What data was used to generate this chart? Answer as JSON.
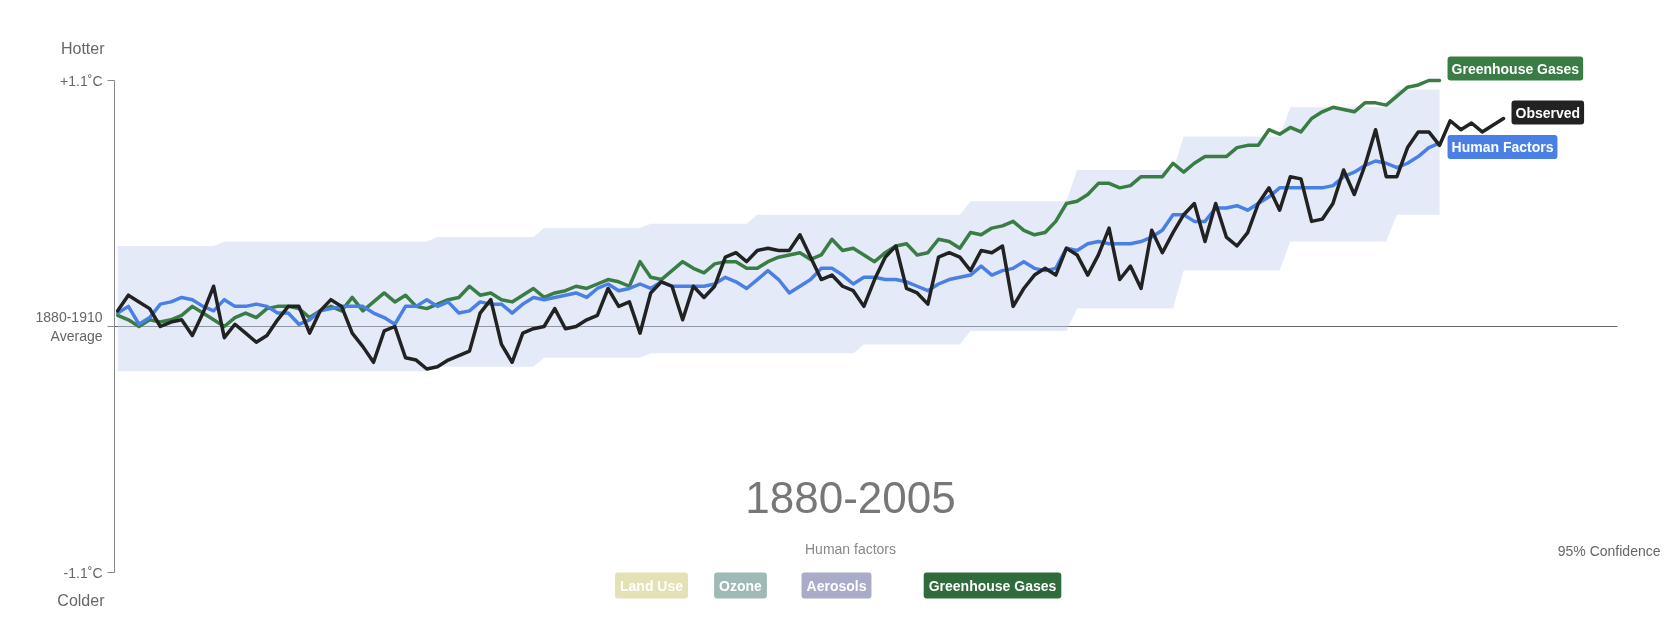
{
  "chart_data": {
    "type": "line",
    "categories": [
      null,
      null,
      null,
      null,
      null,
      null,
      null,
      null,
      null,
      null,
      null,
      null,
      null,
      null,
      null,
      null,
      null,
      null,
      null,
      null,
      null,
      null,
      null,
      null,
      null,
      null,
      null,
      null,
      null,
      null,
      null,
      null,
      null,
      null,
      null,
      null,
      null,
      null,
      null,
      null,
      null,
      null,
      null,
      null,
      null,
      null,
      null,
      null,
      null,
      null,
      null,
      null,
      null,
      null,
      null,
      null,
      null,
      null,
      null,
      null,
      null,
      null,
      null,
      null,
      null,
      null,
      null,
      null,
      null,
      null,
      null,
      null,
      null,
      null,
      null,
      null,
      null,
      null,
      null,
      null,
      null,
      null,
      null,
      null,
      null,
      null,
      null,
      null,
      null,
      null,
      null,
      null,
      null,
      null,
      null,
      null,
      null,
      null,
      null,
      null,
      null,
      null,
      null,
      null,
      null,
      null,
      null,
      null,
      null,
      null,
      null,
      null,
      null,
      null,
      null,
      null,
      null,
      null,
      null,
      null,
      null,
      null,
      null,
      null,
      null,
      null,
      null,
      null,
      null,
      null,
      null
    ],
    "ylim": [
      -1.1,
      1.1
    ],
    "yticks": [
      {
        "value": 1.1,
        "label": "+1.1˚C"
      },
      {
        "value": 0,
        "label": "1880-1910\nAverage"
      },
      {
        "value": -1.1,
        "label": "-1.1˚C"
      }
    ],
    "tick_labels": "y",
    "legend_title": "Human factors",
    "ref_lines": [
      {
        "axis": "y",
        "value": 0,
        "color": "#666666"
      }
    ],
    "annotations": [
      "Hotter",
      "Colder",
      "1880-2005",
      "Land Use",
      "Ozone",
      "Aerosols",
      "Greenhouse Gases",
      "95% Confidence"
    ],
    "series": [
      {
        "name": "Greenhouse Gases",
        "color": "#3a7d44",
        "values": [
          0.05,
          0.03,
          0.0,
          0.03,
          0.02,
          0.03,
          0.05,
          0.09,
          0.06,
          0.03,
          0.0,
          0.04,
          0.06,
          0.04,
          0.08,
          0.09,
          0.09,
          0.08,
          0.04,
          0.07,
          0.09,
          0.07,
          0.13,
          0.07,
          0.11,
          0.15,
          0.11,
          0.14,
          0.09,
          0.08,
          0.1,
          0.12,
          0.13,
          0.18,
          0.14,
          0.15,
          0.12,
          0.11,
          0.14,
          0.17,
          0.13,
          0.15,
          0.16,
          0.18,
          0.17,
          0.19,
          0.21,
          0.2,
          0.18,
          0.29,
          0.22,
          0.21,
          0.25,
          0.29,
          0.26,
          0.24,
          0.28,
          0.29,
          0.29,
          0.26,
          0.26,
          0.29,
          0.31,
          0.32,
          0.33,
          0.3,
          0.32,
          0.39,
          0.34,
          0.35,
          0.32,
          0.29,
          0.33,
          0.36,
          0.37,
          0.32,
          0.33,
          0.39,
          0.38,
          0.35,
          0.42,
          0.41,
          0.44,
          0.45,
          0.47,
          0.43,
          0.41,
          0.42,
          0.47,
          0.55,
          0.56,
          0.59,
          0.64,
          0.64,
          0.62,
          0.63,
          0.67,
          0.67,
          0.67,
          0.73,
          0.69,
          0.73,
          0.76,
          0.76,
          0.76,
          0.8,
          0.81,
          0.81,
          0.88,
          0.86,
          0.89,
          0.87,
          0.93,
          0.96,
          0.98,
          0.97,
          0.96,
          1.0,
          1.0,
          0.99,
          1.03,
          1.07,
          1.08,
          1.1,
          1.1,
          null,
          null,
          null,
          null,
          null,
          null
        ]
      },
      {
        "name": "Human Factors",
        "color": "#4a80e6",
        "values": [
          0.06,
          0.09,
          0.01,
          0.04,
          0.1,
          0.11,
          0.13,
          0.12,
          0.09,
          0.07,
          0.12,
          0.09,
          0.09,
          0.1,
          0.09,
          0.06,
          0.06,
          0.01,
          0.03,
          0.07,
          0.08,
          0.09,
          0.09,
          0.09,
          0.06,
          0.04,
          0.01,
          0.09,
          0.09,
          0.12,
          0.09,
          0.11,
          0.06,
          0.07,
          0.11,
          0.1,
          0.1,
          0.06,
          0.1,
          0.13,
          0.12,
          0.13,
          0.14,
          0.15,
          0.13,
          0.17,
          0.19,
          0.16,
          0.17,
          0.19,
          0.17,
          0.2,
          0.18,
          0.18,
          0.18,
          0.18,
          0.19,
          0.22,
          0.2,
          0.17,
          0.21,
          0.25,
          0.21,
          0.15,
          0.18,
          0.21,
          0.26,
          0.26,
          0.23,
          0.19,
          0.22,
          0.22,
          0.21,
          0.21,
          0.2,
          0.18,
          0.16,
          0.19,
          0.21,
          0.22,
          0.23,
          0.27,
          0.23,
          0.25,
          0.26,
          0.29,
          0.26,
          0.25,
          0.26,
          0.35,
          0.34,
          0.37,
          0.38,
          0.37,
          0.37,
          0.37,
          0.38,
          0.4,
          0.43,
          0.5,
          0.5,
          0.47,
          0.47,
          0.53,
          0.53,
          0.54,
          0.52,
          0.55,
          0.58,
          0.62,
          0.62,
          0.62,
          0.62,
          0.62,
          0.63,
          0.67,
          0.69,
          0.72,
          0.74,
          0.73,
          0.71,
          0.73,
          0.76,
          0.8,
          0.82,
          null,
          null,
          null,
          null,
          null,
          null
        ],
        "upper": [
          0.36,
          0.36,
          0.36,
          0.36,
          0.36,
          0.36,
          0.36,
          0.36,
          0.36,
          0.36,
          0.38,
          0.38,
          0.38,
          0.38,
          0.38,
          0.38,
          0.38,
          0.38,
          0.38,
          0.38,
          0.38,
          0.38,
          0.38,
          0.38,
          0.38,
          0.38,
          0.38,
          0.38,
          0.38,
          0.38,
          0.4,
          0.4,
          0.4,
          0.4,
          0.4,
          0.4,
          0.4,
          0.4,
          0.4,
          0.4,
          0.44,
          0.44,
          0.44,
          0.44,
          0.44,
          0.44,
          0.44,
          0.44,
          0.44,
          0.44,
          0.46,
          0.46,
          0.46,
          0.46,
          0.46,
          0.46,
          0.46,
          0.46,
          0.46,
          0.46,
          0.5,
          0.5,
          0.5,
          0.5,
          0.5,
          0.5,
          0.5,
          0.5,
          0.5,
          0.5,
          0.5,
          0.5,
          0.5,
          0.5,
          0.5,
          0.5,
          0.5,
          0.5,
          0.5,
          0.5,
          0.56,
          0.56,
          0.56,
          0.56,
          0.56,
          0.56,
          0.56,
          0.56,
          0.56,
          0.56,
          0.7,
          0.7,
          0.7,
          0.7,
          0.7,
          0.7,
          0.7,
          0.7,
          0.7,
          0.7,
          0.85,
          0.85,
          0.85,
          0.85,
          0.85,
          0.85,
          0.85,
          0.85,
          0.85,
          0.85,
          0.98,
          0.98,
          0.98,
          0.98,
          0.98,
          0.98,
          0.98,
          0.98,
          0.98,
          0.98,
          1.06,
          1.06,
          1.06,
          1.06,
          1.06,
          null,
          null,
          null,
          null,
          null,
          null
        ],
        "lower": [
          -0.2,
          -0.2,
          -0.2,
          -0.2,
          -0.2,
          -0.2,
          -0.2,
          -0.2,
          -0.2,
          -0.2,
          -0.2,
          -0.2,
          -0.2,
          -0.2,
          -0.2,
          -0.2,
          -0.2,
          -0.2,
          -0.2,
          -0.2,
          -0.2,
          -0.2,
          -0.2,
          -0.2,
          -0.2,
          -0.2,
          -0.2,
          -0.2,
          -0.2,
          -0.2,
          -0.18,
          -0.18,
          -0.18,
          -0.18,
          -0.18,
          -0.18,
          -0.18,
          -0.18,
          -0.18,
          -0.18,
          -0.14,
          -0.14,
          -0.14,
          -0.14,
          -0.14,
          -0.14,
          -0.14,
          -0.14,
          -0.14,
          -0.14,
          -0.12,
          -0.12,
          -0.12,
          -0.12,
          -0.12,
          -0.12,
          -0.12,
          -0.12,
          -0.12,
          -0.12,
          -0.12,
          -0.12,
          -0.12,
          -0.12,
          -0.12,
          -0.12,
          -0.12,
          -0.12,
          -0.12,
          -0.12,
          -0.08,
          -0.08,
          -0.08,
          -0.08,
          -0.08,
          -0.08,
          -0.08,
          -0.08,
          -0.08,
          -0.08,
          -0.02,
          -0.02,
          -0.02,
          -0.02,
          -0.02,
          -0.02,
          -0.02,
          -0.02,
          -0.02,
          -0.02,
          0.08,
          0.08,
          0.08,
          0.08,
          0.08,
          0.08,
          0.08,
          0.08,
          0.08,
          0.08,
          0.25,
          0.25,
          0.25,
          0.25,
          0.25,
          0.25,
          0.25,
          0.25,
          0.25,
          0.25,
          0.38,
          0.38,
          0.38,
          0.38,
          0.38,
          0.38,
          0.38,
          0.38,
          0.38,
          0.38,
          0.5,
          0.5,
          0.5,
          0.5,
          0.5,
          null,
          null,
          null,
          null,
          null,
          null
        ]
      },
      {
        "name": "Observed",
        "color": "#222222",
        "values": [
          0.07,
          0.14,
          0.11,
          0.08,
          0.0,
          0.02,
          0.03,
          -0.04,
          0.06,
          0.18,
          -0.05,
          0.01,
          -0.03,
          -0.07,
          -0.04,
          0.03,
          0.09,
          0.09,
          -0.03,
          0.07,
          0.12,
          0.09,
          -0.03,
          -0.09,
          -0.16,
          -0.02,
          0.0,
          -0.14,
          -0.15,
          -0.19,
          -0.18,
          -0.15,
          -0.13,
          -0.11,
          0.06,
          0.12,
          -0.08,
          -0.16,
          -0.03,
          -0.01,
          0.0,
          0.08,
          -0.01,
          0.0,
          0.03,
          0.05,
          0.17,
          0.09,
          0.11,
          -0.03,
          0.15,
          0.2,
          0.18,
          0.03,
          0.18,
          0.13,
          0.18,
          0.31,
          0.33,
          0.29,
          0.34,
          0.35,
          0.34,
          0.34,
          0.41,
          0.31,
          0.21,
          0.23,
          0.18,
          0.16,
          0.09,
          0.21,
          0.31,
          0.36,
          0.17,
          0.15,
          0.1,
          0.31,
          0.33,
          0.31,
          0.25,
          0.34,
          0.33,
          0.36,
          0.09,
          0.17,
          0.23,
          0.26,
          0.23,
          0.35,
          0.32,
          0.23,
          0.32,
          0.44,
          0.21,
          0.27,
          0.17,
          0.43,
          0.33,
          0.42,
          0.5,
          0.55,
          0.38,
          0.55,
          0.4,
          0.36,
          0.42,
          0.55,
          0.62,
          0.52,
          0.67,
          0.66,
          0.47,
          0.48,
          0.55,
          0.7,
          0.59,
          0.72,
          0.88,
          0.67,
          0.67,
          0.8,
          0.87,
          0.87,
          0.81,
          0.92,
          0.88,
          0.91,
          0.87,
          0.9,
          0.93
        ]
      }
    ]
  }
}
